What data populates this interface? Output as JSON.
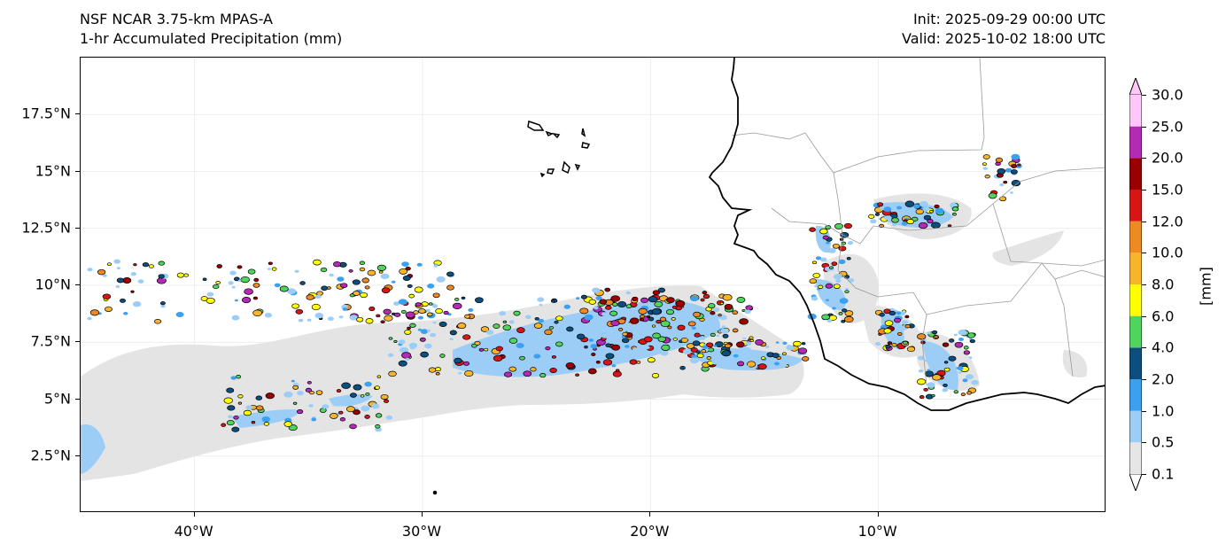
{
  "header": {
    "model": "NSF NCAR 3.75-km MPAS-A",
    "field": "1-hr Accumulated Precipitation (mm)",
    "init": "Init: 2025-09-29 00:00 UTC",
    "valid": "Valid: 2025-10-02 18:00 UTC"
  },
  "map": {
    "projection": "PlateCarree",
    "lon_range": [
      -45,
      0
    ],
    "lat_range": [
      0,
      20
    ],
    "gridlines": true,
    "lat_ticks": [
      {
        "value": 2.5,
        "label": "2.5°N"
      },
      {
        "value": 5,
        "label": "5°N"
      },
      {
        "value": 7.5,
        "label": "7.5°N"
      },
      {
        "value": 10,
        "label": "10°N"
      },
      {
        "value": 12.5,
        "label": "12.5°N"
      },
      {
        "value": 15,
        "label": "15°N"
      },
      {
        "value": 17.5,
        "label": "17.5°N"
      }
    ],
    "lon_ticks": [
      {
        "value": -40,
        "label": "40°W"
      },
      {
        "value": -30,
        "label": "30°W"
      },
      {
        "value": -20,
        "label": "20°W"
      },
      {
        "value": -10,
        "label": "10°W"
      }
    ],
    "features": [
      "coastline",
      "country borders",
      "Cape Verde islands"
    ]
  },
  "colorbar": {
    "unit": "[mm]",
    "extend": "both",
    "levels": [
      "0.1",
      "0.5",
      "1.0",
      "2.0",
      "4.0",
      "6.0",
      "8.0",
      "10.0",
      "12.0",
      "15.0",
      "20.0",
      "25.0",
      "30.0"
    ],
    "colors": [
      "#e6e6e6",
      "#9ccdf7",
      "#3aa0ef",
      "#0c4f7e",
      "#4fd45c",
      "#ffff00",
      "#f8b52a",
      "#ee8a22",
      "#d81515",
      "#9b0000",
      "#b52ab5",
      "#ffc8f8"
    ],
    "under_color": "#ffffff",
    "over_color": "#ffc8f8"
  }
}
